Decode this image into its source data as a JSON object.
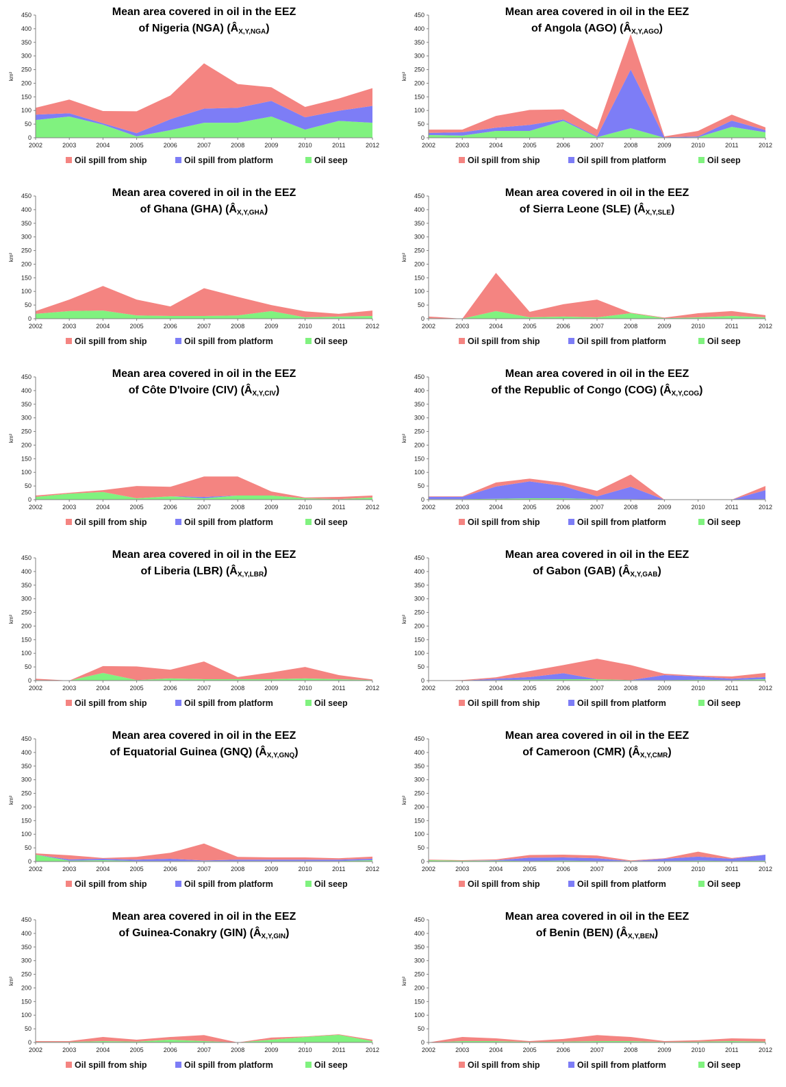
{
  "colors": {
    "ship": "#f48481",
    "platform": "#7d7df6",
    "seep": "#80f27f",
    "axis": "#808080"
  },
  "legend": [
    "Oil spill from ship",
    "Oil spill from platform",
    "Oil seep"
  ],
  "chart_data": [
    {
      "type": "area",
      "stacked": true,
      "title": [
        "Mean area covered in oil in the EEZ",
        "of Nigeria (NGA) (Â",
        "X,Y,NGA",
        ")"
      ],
      "ylabel": "km²",
      "ylim": [
        0,
        450
      ],
      "yticks": [
        0,
        50,
        100,
        150,
        200,
        250,
        300,
        350,
        400,
        450
      ],
      "x": [
        "2002",
        "2003",
        "2004",
        "2005",
        "2006",
        "2007",
        "2008",
        "2009",
        "2010",
        "2011",
        "2012"
      ],
      "series": [
        {
          "name": "Oil seep",
          "values": [
            65,
            78,
            48,
            5,
            28,
            55,
            55,
            78,
            30,
            62,
            55
          ]
        },
        {
          "name": "Oil spill from platform",
          "values": [
            20,
            12,
            5,
            12,
            40,
            52,
            55,
            57,
            45,
            37,
            62
          ]
        },
        {
          "name": "Oil spill from ship",
          "values": [
            25,
            50,
            45,
            80,
            87,
            166,
            87,
            50,
            38,
            45,
            65
          ]
        }
      ]
    },
    {
      "type": "area",
      "stacked": true,
      "title": [
        "Mean area covered in oil in the EEZ",
        "of Angola (AGO) (Â",
        "X,Y,AGO",
        ")"
      ],
      "ylabel": "km²",
      "ylim": [
        0,
        450
      ],
      "yticks": [
        0,
        50,
        100,
        150,
        200,
        250,
        300,
        350,
        400,
        450
      ],
      "x": [
        "2002",
        "2003",
        "2004",
        "2005",
        "2006",
        "2007",
        "2008",
        "2009",
        "2010",
        "2011",
        "2012"
      ],
      "series": [
        {
          "name": "Oil seep",
          "values": [
            10,
            8,
            25,
            25,
            62,
            2,
            35,
            0,
            2,
            40,
            20
          ]
        },
        {
          "name": "Oil spill from platform",
          "values": [
            8,
            12,
            12,
            22,
            5,
            3,
            215,
            2,
            3,
            23,
            8
          ]
        },
        {
          "name": "Oil spill from ship",
          "values": [
            12,
            10,
            43,
            55,
            37,
            25,
            130,
            3,
            20,
            22,
            10
          ]
        }
      ]
    },
    {
      "type": "area",
      "stacked": true,
      "title": [
        "Mean area covered in oil in the EEZ",
        "of Ghana (GHA) (Â",
        "X,Y,GHA",
        ")"
      ],
      "ylabel": "km²",
      "ylim": [
        0,
        450
      ],
      "yticks": [
        0,
        50,
        100,
        150,
        200,
        250,
        300,
        350,
        400,
        450
      ],
      "x": [
        "2002",
        "2003",
        "2004",
        "2005",
        "2006",
        "2007",
        "2008",
        "2009",
        "2010",
        "2011",
        "2012"
      ],
      "series": [
        {
          "name": "Oil seep",
          "values": [
            18,
            28,
            30,
            12,
            10,
            10,
            12,
            28,
            5,
            8,
            10
          ]
        },
        {
          "name": "Oil spill from platform",
          "values": [
            0,
            0,
            0,
            0,
            0,
            0,
            0,
            0,
            0,
            0,
            0
          ]
        },
        {
          "name": "Oil spill from ship",
          "values": [
            10,
            42,
            90,
            58,
            35,
            102,
            68,
            22,
            22,
            10,
            20
          ]
        }
      ]
    },
    {
      "type": "area",
      "stacked": true,
      "title": [
        "Mean area covered  in oil in the EEZ",
        "of Sierra Leone (SLE)  (Â",
        "X,Y,SLE",
        ")"
      ],
      "ylabel": "km²",
      "ylim": [
        0,
        450
      ],
      "yticks": [
        0,
        50,
        100,
        150,
        200,
        250,
        300,
        350,
        400,
        450
      ],
      "x": [
        "2002",
        "2003",
        "2004",
        "2005",
        "2006",
        "2007",
        "2008",
        "2009",
        "2010",
        "2011",
        "2012"
      ],
      "series": [
        {
          "name": "Oil seep",
          "values": [
            2,
            0,
            28,
            5,
            8,
            5,
            20,
            2,
            5,
            10,
            5
          ]
        },
        {
          "name": "Oil spill from platform",
          "values": [
            0,
            0,
            0,
            0,
            0,
            0,
            0,
            0,
            0,
            0,
            0
          ]
        },
        {
          "name": "Oil spill from ship",
          "values": [
            6,
            0,
            140,
            20,
            45,
            65,
            2,
            2,
            15,
            18,
            8
          ]
        }
      ]
    },
    {
      "type": "area",
      "stacked": true,
      "title": [
        "Mean area covered  in oil in the EEZ",
        "of Côte D'Ivoire (CIV) (Â",
        "X,Y,CIV",
        ")"
      ],
      "ylabel": "km²",
      "ylim": [
        0,
        450
      ],
      "yticks": [
        0,
        50,
        100,
        150,
        200,
        250,
        300,
        350,
        400,
        450
      ],
      "x": [
        "2002",
        "2003",
        "2004",
        "2005",
        "2006",
        "2007",
        "2008",
        "2009",
        "2010",
        "2011",
        "2012"
      ],
      "series": [
        {
          "name": "Oil seep",
          "values": [
            10,
            22,
            28,
            5,
            12,
            5,
            15,
            15,
            5,
            2,
            8
          ]
        },
        {
          "name": "Oil spill from platform",
          "values": [
            0,
            0,
            0,
            0,
            0,
            5,
            0,
            0,
            0,
            0,
            0
          ]
        },
        {
          "name": "Oil spill from ship",
          "values": [
            5,
            3,
            7,
            45,
            35,
            75,
            70,
            15,
            3,
            8,
            7
          ]
        }
      ]
    },
    {
      "type": "area",
      "stacked": true,
      "title": [
        "Mean area covered in oil in the EEZ",
        "of the Republic of Congo (COG) (Â",
        "X,Y,COG",
        ")"
      ],
      "ylabel": "km²",
      "ylim": [
        0,
        450
      ],
      "yticks": [
        0,
        50,
        100,
        150,
        200,
        250,
        300,
        350,
        400,
        450
      ],
      "x": [
        "2002",
        "2003",
        "2004",
        "2005",
        "2006",
        "2007",
        "2008",
        "2009",
        "2010",
        "2011",
        "2012"
      ],
      "series": [
        {
          "name": "Oil seep",
          "values": [
            2,
            2,
            3,
            5,
            5,
            2,
            2,
            0,
            0,
            0,
            2
          ]
        },
        {
          "name": "Oil spill from platform",
          "values": [
            8,
            8,
            45,
            62,
            45,
            10,
            45,
            0,
            0,
            0,
            33
          ]
        },
        {
          "name": "Oil spill from ship",
          "values": [
            2,
            2,
            15,
            10,
            12,
            20,
            45,
            0,
            0,
            0,
            15
          ]
        }
      ]
    },
    {
      "type": "area",
      "stacked": true,
      "title": [
        "Mean area covered in oil in the EEZ",
        "of Liberia (LBR) (Â",
        "X,Y,LBR",
        ")"
      ],
      "ylabel": "km²",
      "ylim": [
        0,
        450
      ],
      "yticks": [
        0,
        50,
        100,
        150,
        200,
        250,
        300,
        350,
        400,
        450
      ],
      "x": [
        "2002",
        "2003",
        "2004",
        "2005",
        "2006",
        "2007",
        "2008",
        "2009",
        "2010",
        "2011",
        "2012"
      ],
      "series": [
        {
          "name": "Oil seep",
          "values": [
            2,
            0,
            28,
            2,
            8,
            5,
            5,
            5,
            8,
            5,
            2
          ]
        },
        {
          "name": "Oil spill from platform",
          "values": [
            0,
            0,
            0,
            0,
            0,
            0,
            0,
            0,
            0,
            0,
            0
          ]
        },
        {
          "name": "Oil spill from ship",
          "values": [
            5,
            0,
            25,
            50,
            32,
            65,
            8,
            25,
            42,
            15,
            2
          ]
        }
      ]
    },
    {
      "type": "area",
      "stacked": true,
      "title": [
        "Mean area covered in oil in the EEZ",
        "of Gabon (GAB) (Â",
        "X,Y,GAB",
        ")"
      ],
      "ylabel": "km²",
      "ylim": [
        0,
        450
      ],
      "yticks": [
        0,
        50,
        100,
        150,
        200,
        250,
        300,
        350,
        400,
        450
      ],
      "x": [
        "2002",
        "2003",
        "2004",
        "2005",
        "2006",
        "2007",
        "2008",
        "2009",
        "2010",
        "2011",
        "2012"
      ],
      "series": [
        {
          "name": "Oil seep",
          "values": [
            0,
            0,
            2,
            3,
            5,
            5,
            2,
            2,
            3,
            2,
            5
          ]
        },
        {
          "name": "Oil spill from platform",
          "values": [
            0,
            0,
            5,
            10,
            22,
            0,
            0,
            18,
            12,
            5,
            8
          ]
        },
        {
          "name": "Oil spill from ship",
          "values": [
            0,
            2,
            5,
            22,
            30,
            75,
            55,
            5,
            3,
            8,
            15
          ]
        }
      ]
    },
    {
      "type": "area",
      "stacked": true,
      "title": [
        "Mean area covered in oil in the EEZ",
        "of Equatorial Guinea  (GNQ) (Â",
        "X,Y,GNQ",
        ")"
      ],
      "ylabel": "km²",
      "ylim": [
        0,
        450
      ],
      "yticks": [
        0,
        50,
        100,
        150,
        200,
        250,
        300,
        350,
        400,
        450
      ],
      "x": [
        "2002",
        "2003",
        "2004",
        "2005",
        "2006",
        "2007",
        "2008",
        "2009",
        "2010",
        "2011",
        "2012"
      ],
      "series": [
        {
          "name": "Oil seep",
          "values": [
            25,
            3,
            5,
            2,
            2,
            2,
            2,
            2,
            2,
            2,
            5
          ]
        },
        {
          "name": "Oil spill from platform",
          "values": [
            0,
            5,
            5,
            5,
            8,
            2,
            5,
            5,
            5,
            5,
            5
          ]
        },
        {
          "name": "Oil spill from ship",
          "values": [
            5,
            15,
            3,
            10,
            22,
            62,
            10,
            8,
            8,
            5,
            8
          ]
        }
      ]
    },
    {
      "type": "area",
      "stacked": true,
      "title": [
        "Mean area covered in oil in the EEZ",
        "of  Cameroon (CMR) (Â",
        "X,Y,CMR",
        ")"
      ],
      "ylabel": "km²",
      "ylim": [
        0,
        450
      ],
      "yticks": [
        0,
        50,
        100,
        150,
        200,
        250,
        300,
        350,
        400,
        450
      ],
      "x": [
        "2002",
        "2003",
        "2004",
        "2005",
        "2006",
        "2007",
        "2008",
        "2009",
        "2010",
        "2011",
        "2012"
      ],
      "series": [
        {
          "name": "Oil seep",
          "values": [
            5,
            3,
            3,
            2,
            3,
            2,
            2,
            2,
            3,
            2,
            3
          ]
        },
        {
          "name": "Oil spill from platform",
          "values": [
            0,
            0,
            2,
            12,
            12,
            10,
            0,
            8,
            15,
            8,
            22
          ]
        },
        {
          "name": "Oil spill from ship",
          "values": [
            2,
            2,
            3,
            10,
            10,
            10,
            2,
            2,
            18,
            3,
            0
          ]
        }
      ]
    },
    {
      "type": "area",
      "stacked": true,
      "title": [
        "Mean area covered in oil in the EEZ",
        "of Guinea-Conakry (GIN) (Â",
        "X,Y,GIN",
        ")"
      ],
      "ylabel": "km²",
      "ylim": [
        0,
        450
      ],
      "yticks": [
        0,
        50,
        100,
        150,
        200,
        250,
        300,
        350,
        400,
        450
      ],
      "x": [
        "2002",
        "2003",
        "2004",
        "2005",
        "2006",
        "2007",
        "2008",
        "2009",
        "2010",
        "2011",
        "2012"
      ],
      "series": [
        {
          "name": "Oil seep",
          "values": [
            2,
            2,
            5,
            3,
            10,
            5,
            0,
            10,
            20,
            28,
            5
          ]
        },
        {
          "name": "Oil spill from platform",
          "values": [
            0,
            0,
            0,
            0,
            0,
            0,
            0,
            0,
            0,
            0,
            0
          ]
        },
        {
          "name": "Oil spill from ship",
          "values": [
            3,
            3,
            15,
            7,
            10,
            22,
            0,
            8,
            2,
            2,
            5
          ]
        }
      ]
    },
    {
      "type": "area",
      "stacked": true,
      "title": [
        "Mean area covered in oil in the EEZ",
        "of Benin (BEN) (Â",
        "X,Y,BEN",
        ")"
      ],
      "ylabel": "km²",
      "ylim": [
        0,
        450
      ],
      "yticks": [
        0,
        50,
        100,
        150,
        200,
        250,
        300,
        350,
        400,
        450
      ],
      "x": [
        "2002",
        "2003",
        "2004",
        "2005",
        "2006",
        "2007",
        "2008",
        "2009",
        "2010",
        "2011",
        "2012"
      ],
      "series": [
        {
          "name": "Oil seep",
          "values": [
            0,
            5,
            5,
            2,
            3,
            5,
            5,
            2,
            3,
            5,
            3
          ]
        },
        {
          "name": "Oil spill from platform",
          "values": [
            0,
            0,
            0,
            0,
            0,
            0,
            0,
            0,
            0,
            0,
            0
          ]
        },
        {
          "name": "Oil spill from ship",
          "values": [
            0,
            15,
            10,
            3,
            10,
            22,
            15,
            3,
            5,
            10,
            10
          ]
        }
      ]
    }
  ]
}
